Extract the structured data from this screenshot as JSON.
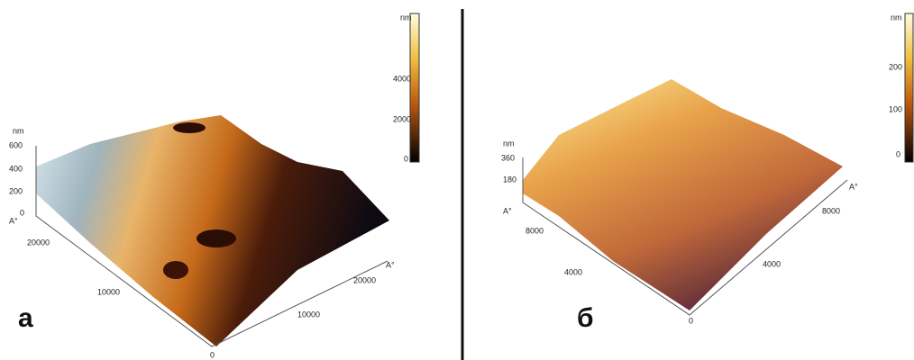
{
  "panel_a": {
    "label": "а",
    "colorbar": {
      "unit": "nm",
      "ticks": [
        "4000",
        "2000",
        "0"
      ]
    },
    "z_axis": {
      "unit": "nm",
      "ticks": [
        "600",
        "400",
        "200",
        "0"
      ],
      "label": "A°"
    },
    "left_axis": {
      "ticks": [
        "20000",
        "10000",
        "0"
      ]
    },
    "right_axis": {
      "ticks": [
        "10000",
        "20000"
      ],
      "label": "A°"
    }
  },
  "panel_b": {
    "label": "б",
    "colorbar": {
      "unit": "nm",
      "ticks": [
        "200",
        "100",
        "0"
      ]
    },
    "z_axis": {
      "unit": "nm",
      "ticks": [
        "360",
        "180"
      ],
      "label": "A°"
    },
    "left_axis": {
      "ticks": [
        "8000",
        "4000"
      ]
    },
    "right_axis": {
      "ticks": [
        "4000",
        "8000"
      ],
      "label": "A°",
      "origin": "0"
    }
  }
}
